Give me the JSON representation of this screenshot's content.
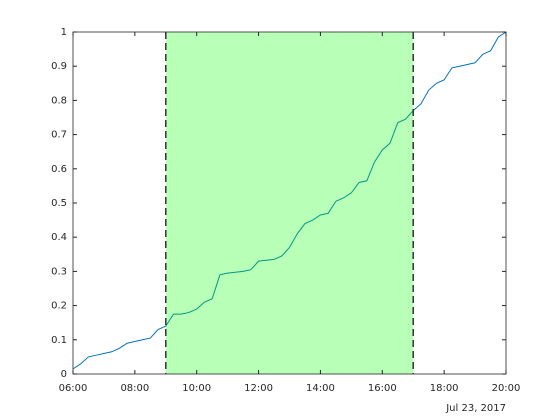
{
  "chart_data": {
    "type": "line",
    "x": [
      6.0,
      6.25,
      6.5,
      6.75,
      7.0,
      7.25,
      7.5,
      7.75,
      8.0,
      8.25,
      8.5,
      8.75,
      9.0,
      9.25,
      9.5,
      9.75,
      10.0,
      10.25,
      10.5,
      10.75,
      11.0,
      11.5,
      11.75,
      12.0,
      12.5,
      12.75,
      13.0,
      13.25,
      13.5,
      13.75,
      14.0,
      14.25,
      14.5,
      14.75,
      15.0,
      15.25,
      15.5,
      15.75,
      16.0,
      16.25,
      16.5,
      16.75,
      17.0,
      17.25,
      17.5,
      17.75,
      18.0,
      18.25,
      18.5,
      18.75,
      19.0,
      19.25,
      19.5,
      19.75,
      20.0
    ],
    "series": [
      {
        "color": "#0072bd",
        "values": [
          0.015,
          0.03,
          0.05,
          0.055,
          0.06,
          0.065,
          0.075,
          0.09,
          0.095,
          0.1,
          0.105,
          0.13,
          0.14,
          0.175,
          0.175,
          0.18,
          0.19,
          0.21,
          0.22,
          0.29,
          0.295,
          0.3,
          0.305,
          0.33,
          0.335,
          0.345,
          0.37,
          0.41,
          0.44,
          0.45,
          0.465,
          0.47,
          0.505,
          0.515,
          0.53,
          0.56,
          0.565,
          0.62,
          0.655,
          0.675,
          0.735,
          0.745,
          0.77,
          0.79,
          0.83,
          0.85,
          0.86,
          0.895,
          0.9,
          0.905,
          0.91,
          0.935,
          0.945,
          0.985,
          1.0
        ]
      }
    ],
    "shaded_region": [
      9,
      17
    ],
    "shaded_color": "#00ff00",
    "xlim": [
      6,
      20
    ],
    "xticks": [
      {
        "value": 6,
        "label": "06:00"
      },
      {
        "value": 8,
        "label": "08:00"
      },
      {
        "value": 10,
        "label": "10:00"
      },
      {
        "value": 12,
        "label": "12:00"
      },
      {
        "value": 14,
        "label": "14:00"
      },
      {
        "value": 16,
        "label": "16:00"
      },
      {
        "value": 18,
        "label": "18:00"
      },
      {
        "value": 20,
        "label": "20:00"
      }
    ],
    "date_label": "Jul 23, 2017",
    "ylim": [
      0,
      1
    ],
    "yticks": [
      0,
      0.1,
      0.2,
      0.3,
      0.4,
      0.5,
      0.6,
      0.7,
      0.8,
      0.9,
      1
    ]
  }
}
